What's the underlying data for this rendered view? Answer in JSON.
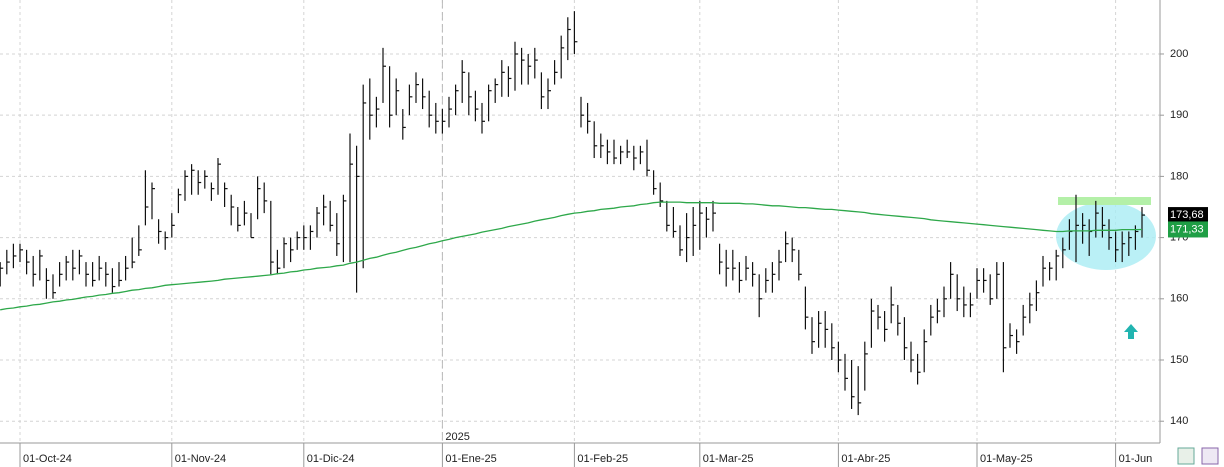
{
  "chart_data": {
    "type": "ohlc",
    "categories": [
      null,
      null,
      null,
      "01-Oct-24",
      null,
      null,
      null,
      null,
      null,
      null,
      null,
      null,
      null,
      null,
      null,
      null,
      null,
      null,
      null,
      null,
      null,
      null,
      null,
      null,
      null,
      null,
      "01-Nov-24",
      null,
      null,
      null,
      null,
      null,
      null,
      null,
      null,
      null,
      null,
      null,
      null,
      null,
      null,
      null,
      null,
      null,
      null,
      null,
      "01-Dic-24",
      null,
      null,
      null,
      null,
      null,
      null,
      null,
      null,
      null,
      null,
      null,
      null,
      null,
      null,
      null,
      null,
      null,
      null,
      null,
      null,
      "01-Ene-25",
      null,
      null,
      null,
      null,
      null,
      null,
      null,
      null,
      null,
      null,
      null,
      null,
      null,
      null,
      null,
      null,
      null,
      null,
      null,
      "01-Feb-25",
      null,
      null,
      null,
      null,
      null,
      null,
      null,
      null,
      null,
      null,
      null,
      null,
      null,
      null,
      null,
      null,
      null,
      null,
      "01-Mar-25",
      null,
      null,
      null,
      null,
      null,
      null,
      null,
      null,
      null,
      null,
      null,
      null,
      null,
      null,
      null,
      null,
      null,
      null,
      null,
      null,
      "01-Abr-25",
      null,
      null,
      null,
      null,
      null,
      null,
      null,
      null,
      null,
      null,
      null,
      null,
      null,
      null,
      null,
      null,
      null,
      null,
      null,
      null,
      "01-May-25",
      null,
      null,
      null,
      null,
      null,
      null,
      null,
      null,
      null,
      null,
      null,
      null,
      null,
      null,
      null,
      null,
      null,
      null,
      null,
      null,
      "01-Jun",
      null,
      null,
      null,
      null
    ],
    "year_label": "2025",
    "price": {
      "color": "#111111",
      "high": [
        166,
        168,
        169,
        169,
        168,
        167,
        168,
        165,
        164,
        166,
        167,
        168,
        168,
        166,
        166,
        167,
        166,
        165,
        166,
        167,
        170,
        172,
        181,
        179,
        173,
        171,
        174,
        178,
        181,
        182,
        181,
        181,
        179,
        183,
        179,
        177,
        175,
        176,
        174,
        180,
        179,
        176,
        168,
        170,
        170,
        171,
        172,
        172,
        175,
        177,
        176,
        174,
        177,
        187,
        185,
        195,
        196,
        193,
        201,
        198,
        196,
        191,
        195,
        197,
        196,
        194,
        192,
        191,
        193,
        195,
        199,
        197,
        194,
        192,
        195,
        196,
        199,
        198,
        202,
        201,
        200,
        201,
        197,
        196,
        199,
        203,
        206,
        207,
        193,
        192,
        189,
        187,
        186,
        186,
        185,
        186,
        185,
        185,
        186,
        181,
        179,
        176,
        175,
        172,
        174,
        175,
        176,
        175,
        176,
        169,
        168,
        168,
        166,
        167,
        166,
        164,
        165,
        166,
        168,
        171,
        170,
        168,
        162,
        157,
        158,
        158,
        156,
        153,
        151,
        150,
        149,
        153,
        160,
        159,
        158,
        162,
        159,
        157,
        153,
        151,
        155,
        159,
        160,
        162,
        166,
        164,
        162,
        161,
        165,
        165,
        164,
        166,
        166,
        156,
        155,
        159,
        161,
        163,
        167,
        166,
        168,
        170,
        173,
        177,
        174,
        173,
        176,
        175,
        173,
        171,
        171,
        171,
        172,
        175
      ],
      "low": [
        162,
        164,
        165,
        166,
        164,
        162,
        163,
        160,
        160,
        162,
        163,
        163,
        164,
        162,
        162,
        163,
        162,
        161,
        162,
        163,
        165,
        167,
        172,
        173,
        169,
        168,
        170,
        174,
        176,
        177,
        177,
        178,
        176,
        177,
        175,
        172,
        171,
        172,
        170,
        173,
        174,
        164,
        164,
        165,
        166,
        168,
        168,
        168,
        170,
        172,
        171,
        167,
        166,
        166,
        161,
        165,
        186,
        188,
        192,
        188,
        190,
        186,
        190,
        192,
        191,
        188,
        187,
        187,
        188,
        190,
        192,
        190,
        189,
        187,
        189,
        192,
        193,
        193,
        194,
        195,
        195,
        196,
        191,
        191,
        195,
        196,
        199,
        200,
        188,
        187,
        183,
        183,
        182,
        182,
        182,
        183,
        181,
        182,
        180,
        177,
        175,
        171,
        170,
        167,
        166,
        167,
        168,
        170,
        171,
        164,
        162,
        163,
        161,
        163,
        162,
        157,
        161,
        161,
        163,
        166,
        166,
        163,
        155,
        151,
        152,
        152,
        150,
        148,
        145,
        142,
        141,
        145,
        152,
        155,
        153,
        156,
        154,
        150,
        148,
        146,
        148,
        154,
        156,
        157,
        160,
        158,
        157,
        157,
        160,
        161,
        159,
        160,
        148,
        152,
        151,
        154,
        156,
        158,
        162,
        163,
        163,
        165,
        168,
        166,
        169,
        167,
        170,
        170,
        168,
        166,
        166,
        167,
        168,
        170
      ],
      "close": [
        165,
        166,
        167,
        168,
        166,
        164,
        167,
        163,
        161,
        164,
        166,
        165,
        167,
        164,
        163,
        165,
        164,
        162,
        163,
        165,
        166,
        168,
        175,
        178,
        171,
        170,
        172,
        177,
        180,
        181,
        179,
        180,
        178,
        182,
        178,
        175,
        172,
        174,
        170,
        178,
        176,
        166,
        165,
        169,
        168,
        170,
        170,
        171,
        174,
        175,
        172,
        169,
        176,
        182,
        180,
        192,
        190,
        191,
        198,
        190,
        194,
        188,
        193,
        195,
        193,
        190,
        189,
        189,
        191,
        194,
        197,
        193,
        191,
        189,
        194,
        195,
        197,
        196,
        200,
        199,
        198,
        199,
        193,
        194,
        197,
        201,
        204,
        202,
        190,
        189,
        185,
        185,
        184,
        183,
        184,
        184,
        183,
        184,
        181,
        178,
        176,
        172,
        171,
        168,
        170,
        172,
        174,
        173,
        174,
        166,
        165,
        165,
        163,
        165,
        164,
        160,
        163,
        164,
        166,
        169,
        168,
        164,
        157,
        153,
        156,
        155,
        152,
        150,
        147,
        144,
        143,
        151,
        158,
        157,
        155,
        159,
        156,
        152,
        150,
        148,
        153,
        157,
        158,
        160,
        164,
        160,
        159,
        159,
        163,
        163,
        160,
        164,
        152,
        154,
        153,
        157,
        159,
        161,
        165,
        165,
        167,
        168,
        171,
        172,
        172,
        171,
        174,
        172,
        170,
        168,
        169,
        170,
        171,
        173.68
      ]
    },
    "ma": {
      "color": "#2ea84a",
      "values": [
        158.2,
        158.4,
        158.5,
        158.7,
        158.8,
        159.0,
        159.1,
        159.3,
        159.5,
        159.6,
        159.8,
        159.9,
        160.1,
        160.3,
        160.4,
        160.6,
        160.7,
        160.9,
        161.0,
        161.2,
        161.4,
        161.5,
        161.7,
        161.8,
        162.0,
        162.2,
        162.3,
        162.4,
        162.5,
        162.6,
        162.7,
        162.8,
        162.9,
        163.0,
        163.2,
        163.3,
        163.4,
        163.5,
        163.6,
        163.7,
        163.8,
        163.9,
        164.1,
        164.2,
        164.4,
        164.5,
        164.7,
        164.8,
        165.0,
        165.1,
        165.2,
        165.4,
        165.5,
        165.8,
        166.0,
        166.3,
        166.6,
        166.8,
        167.1,
        167.4,
        167.6,
        167.9,
        168.2,
        168.4,
        168.7,
        169.0,
        169.2,
        169.5,
        169.7,
        170.0,
        170.2,
        170.4,
        170.6,
        170.9,
        171.1,
        171.3,
        171.5,
        171.8,
        172.0,
        172.2,
        172.4,
        172.7,
        172.9,
        173.1,
        173.3,
        173.6,
        173.8,
        174.0,
        174.1,
        174.3,
        174.4,
        174.6,
        174.7,
        174.8,
        175.0,
        175.1,
        175.2,
        175.4,
        175.5,
        175.7,
        175.8,
        175.8,
        175.8,
        175.8,
        175.7,
        175.7,
        175.7,
        175.7,
        175.7,
        175.6,
        175.6,
        175.6,
        175.6,
        175.5,
        175.5,
        175.4,
        175.3,
        175.2,
        175.2,
        175.1,
        175.0,
        174.9,
        174.9,
        174.8,
        174.7,
        174.6,
        174.6,
        174.5,
        174.4,
        174.3,
        174.2,
        174.1,
        173.9,
        173.8,
        173.7,
        173.6,
        173.5,
        173.4,
        173.3,
        173.2,
        173.1,
        172.9,
        172.8,
        172.7,
        172.6,
        172.5,
        172.4,
        172.3,
        172.2,
        172.1,
        172.0,
        171.9,
        171.8,
        171.7,
        171.6,
        171.5,
        171.4,
        171.3,
        171.2,
        171.1,
        171.0,
        171.0,
        171.1,
        171.1,
        171.1,
        171.1,
        171.2,
        171.2,
        171.2,
        171.2,
        171.3,
        171.3,
        171.3,
        171.33
      ]
    },
    "price_badges": [
      {
        "value": 173.68,
        "label": "173,68",
        "color": "#000000"
      },
      {
        "value": 171.33,
        "label": "171,33",
        "color": "#1f9e45"
      }
    ],
    "ylim": [
      136.44,
      208.82
    ],
    "yticks": [
      140,
      150,
      160,
      170,
      180,
      190,
      200
    ],
    "grid": true
  }
}
